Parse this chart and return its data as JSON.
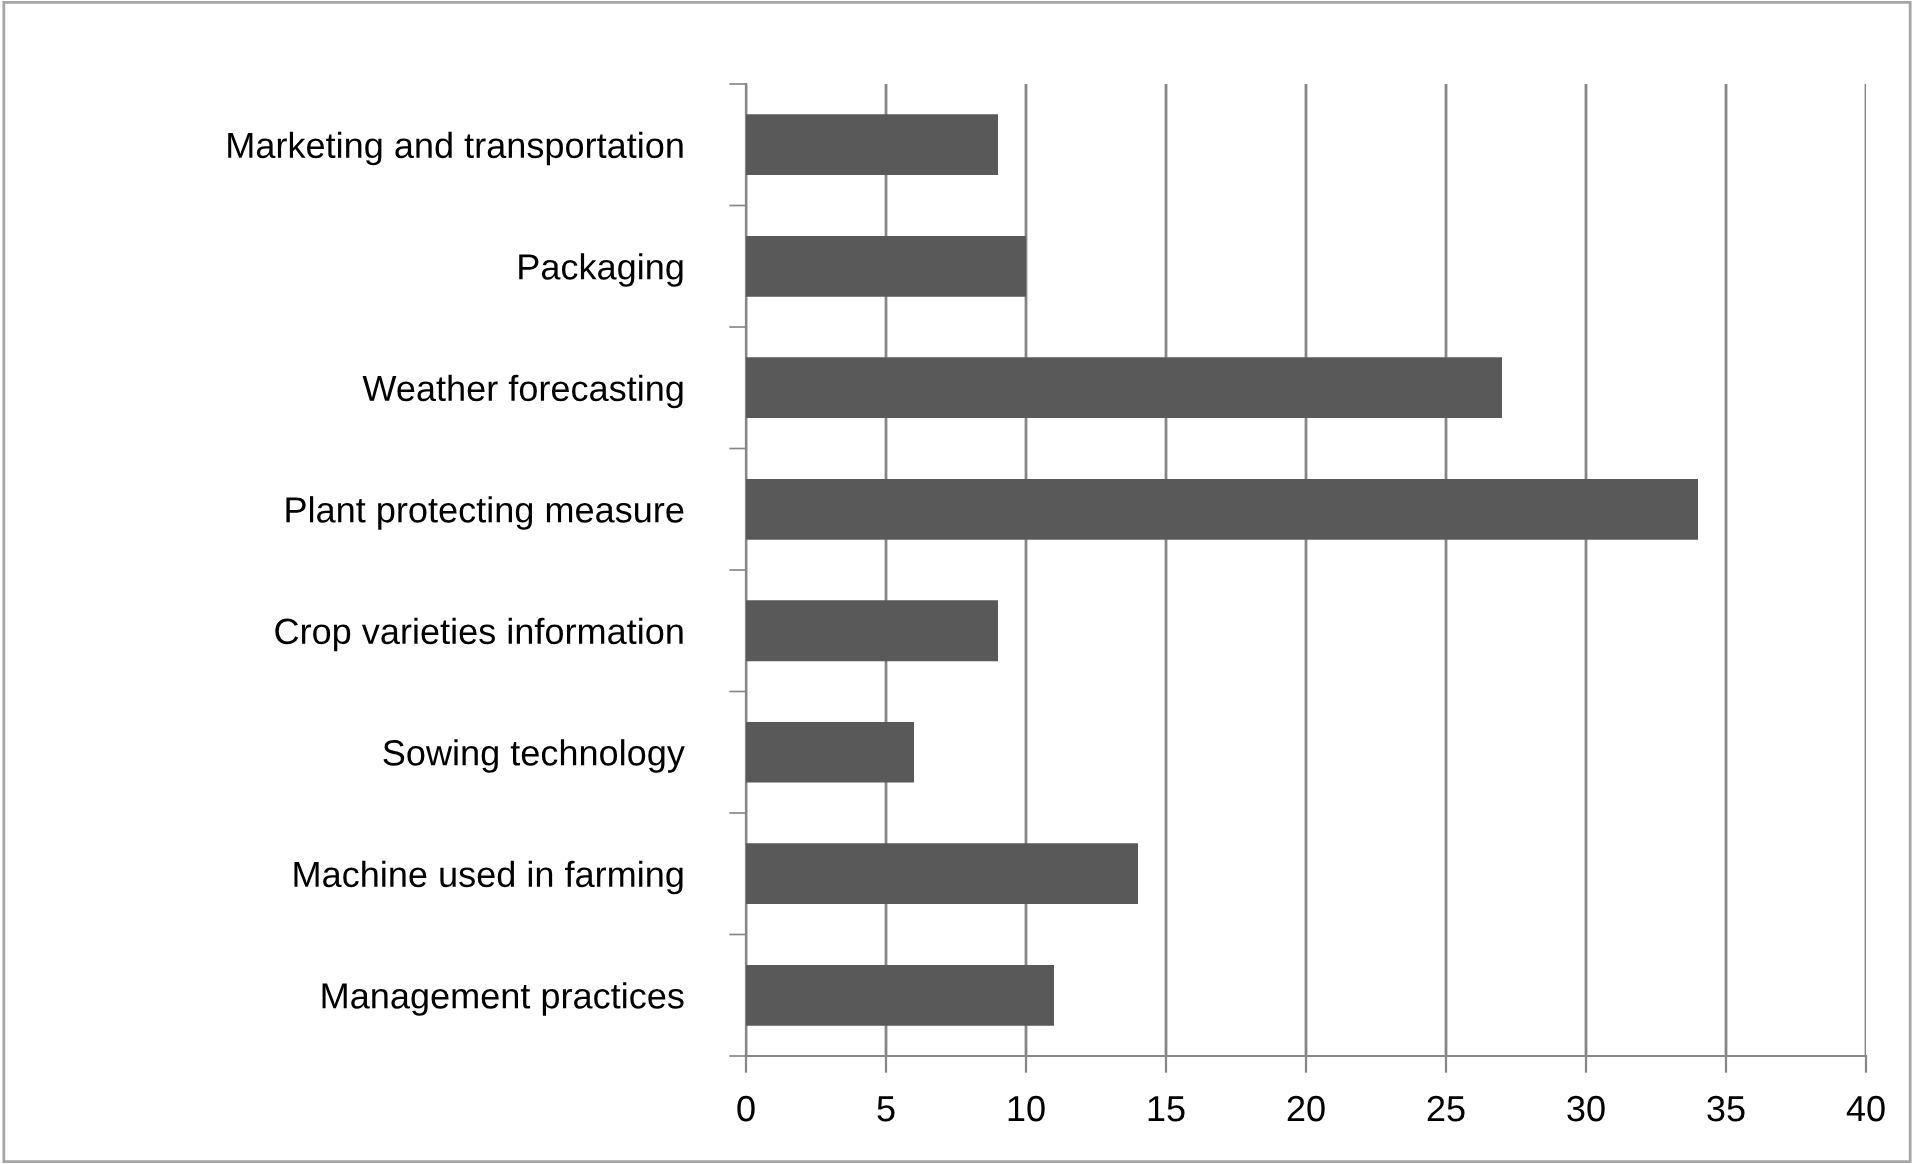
{
  "chart_data": {
    "type": "bar",
    "orientation": "horizontal",
    "categories": [
      "Marketing and transportation",
      "Packaging",
      "Weather forecasting",
      "Plant protecting measure",
      "Crop varieties information",
      "Sowing technology",
      "Machine used in farming",
      "Management practices"
    ],
    "values": [
      9,
      10,
      27,
      34,
      9,
      6,
      14,
      11
    ],
    "color": "#595959",
    "xlim": [
      0,
      40
    ],
    "xticks": [
      0,
      5,
      10,
      15,
      20,
      25,
      30,
      35,
      40
    ],
    "grid": "x",
    "legend": false
  }
}
